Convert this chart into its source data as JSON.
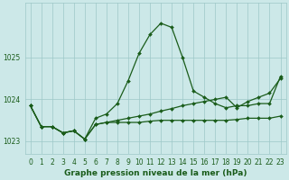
{
  "background_color": "#cce8e8",
  "grid_color": "#9dc8c8",
  "line_color": "#1a5c1a",
  "title": "Graphe pression niveau de la mer (hPa)",
  "xlim": [
    -0.5,
    23.5
  ],
  "ylim": [
    1022.7,
    1026.3
  ],
  "yticks": [
    1023,
    1024,
    1025
  ],
  "xticks": [
    0,
    1,
    2,
    3,
    4,
    5,
    6,
    7,
    8,
    9,
    10,
    11,
    12,
    13,
    14,
    15,
    16,
    17,
    18,
    19,
    20,
    21,
    22,
    23
  ],
  "series1_x": [
    0,
    1,
    2,
    3,
    4,
    5,
    6,
    7,
    8,
    9,
    10,
    11,
    12,
    13,
    14,
    15,
    16,
    17,
    18,
    19,
    20,
    21,
    22,
    23
  ],
  "series1_y": [
    1023.85,
    1023.35,
    1023.35,
    1023.2,
    1023.25,
    1023.05,
    1023.55,
    1023.65,
    1023.9,
    1024.45,
    1025.1,
    1025.55,
    1025.82,
    1025.72,
    1025.0,
    1024.2,
    1024.05,
    1023.9,
    1023.8,
    1023.85,
    1023.85,
    1023.9,
    1023.9,
    1024.55
  ],
  "series2_x": [
    0,
    1,
    2,
    3,
    4,
    5,
    6,
    7,
    8,
    9,
    10,
    11,
    12,
    13,
    14,
    15,
    16,
    17,
    18,
    19,
    20,
    21,
    22,
    23
  ],
  "series2_y": [
    1023.85,
    1023.35,
    1023.35,
    1023.2,
    1023.25,
    1023.05,
    1023.4,
    1023.45,
    1023.45,
    1023.45,
    1023.45,
    1023.48,
    1023.5,
    1023.5,
    1023.5,
    1023.5,
    1023.5,
    1023.5,
    1023.5,
    1023.52,
    1023.55,
    1023.55,
    1023.55,
    1023.6
  ],
  "series3_x": [
    0,
    1,
    2,
    3,
    4,
    5,
    6,
    7,
    8,
    9,
    10,
    11,
    12,
    13,
    14,
    15,
    16,
    17,
    18,
    19,
    20,
    21,
    22,
    23
  ],
  "series3_y": [
    1023.85,
    1023.35,
    1023.35,
    1023.2,
    1023.25,
    1023.05,
    1023.4,
    1023.45,
    1023.5,
    1023.55,
    1023.6,
    1023.65,
    1023.72,
    1023.78,
    1023.85,
    1023.9,
    1023.95,
    1024.0,
    1024.05,
    1023.8,
    1023.95,
    1024.05,
    1024.15,
    1024.5
  ],
  "marker": "D",
  "markersize": 2.0,
  "linewidth": 0.9,
  "title_fontsize": 6.5,
  "tick_labelsize": 5.5
}
